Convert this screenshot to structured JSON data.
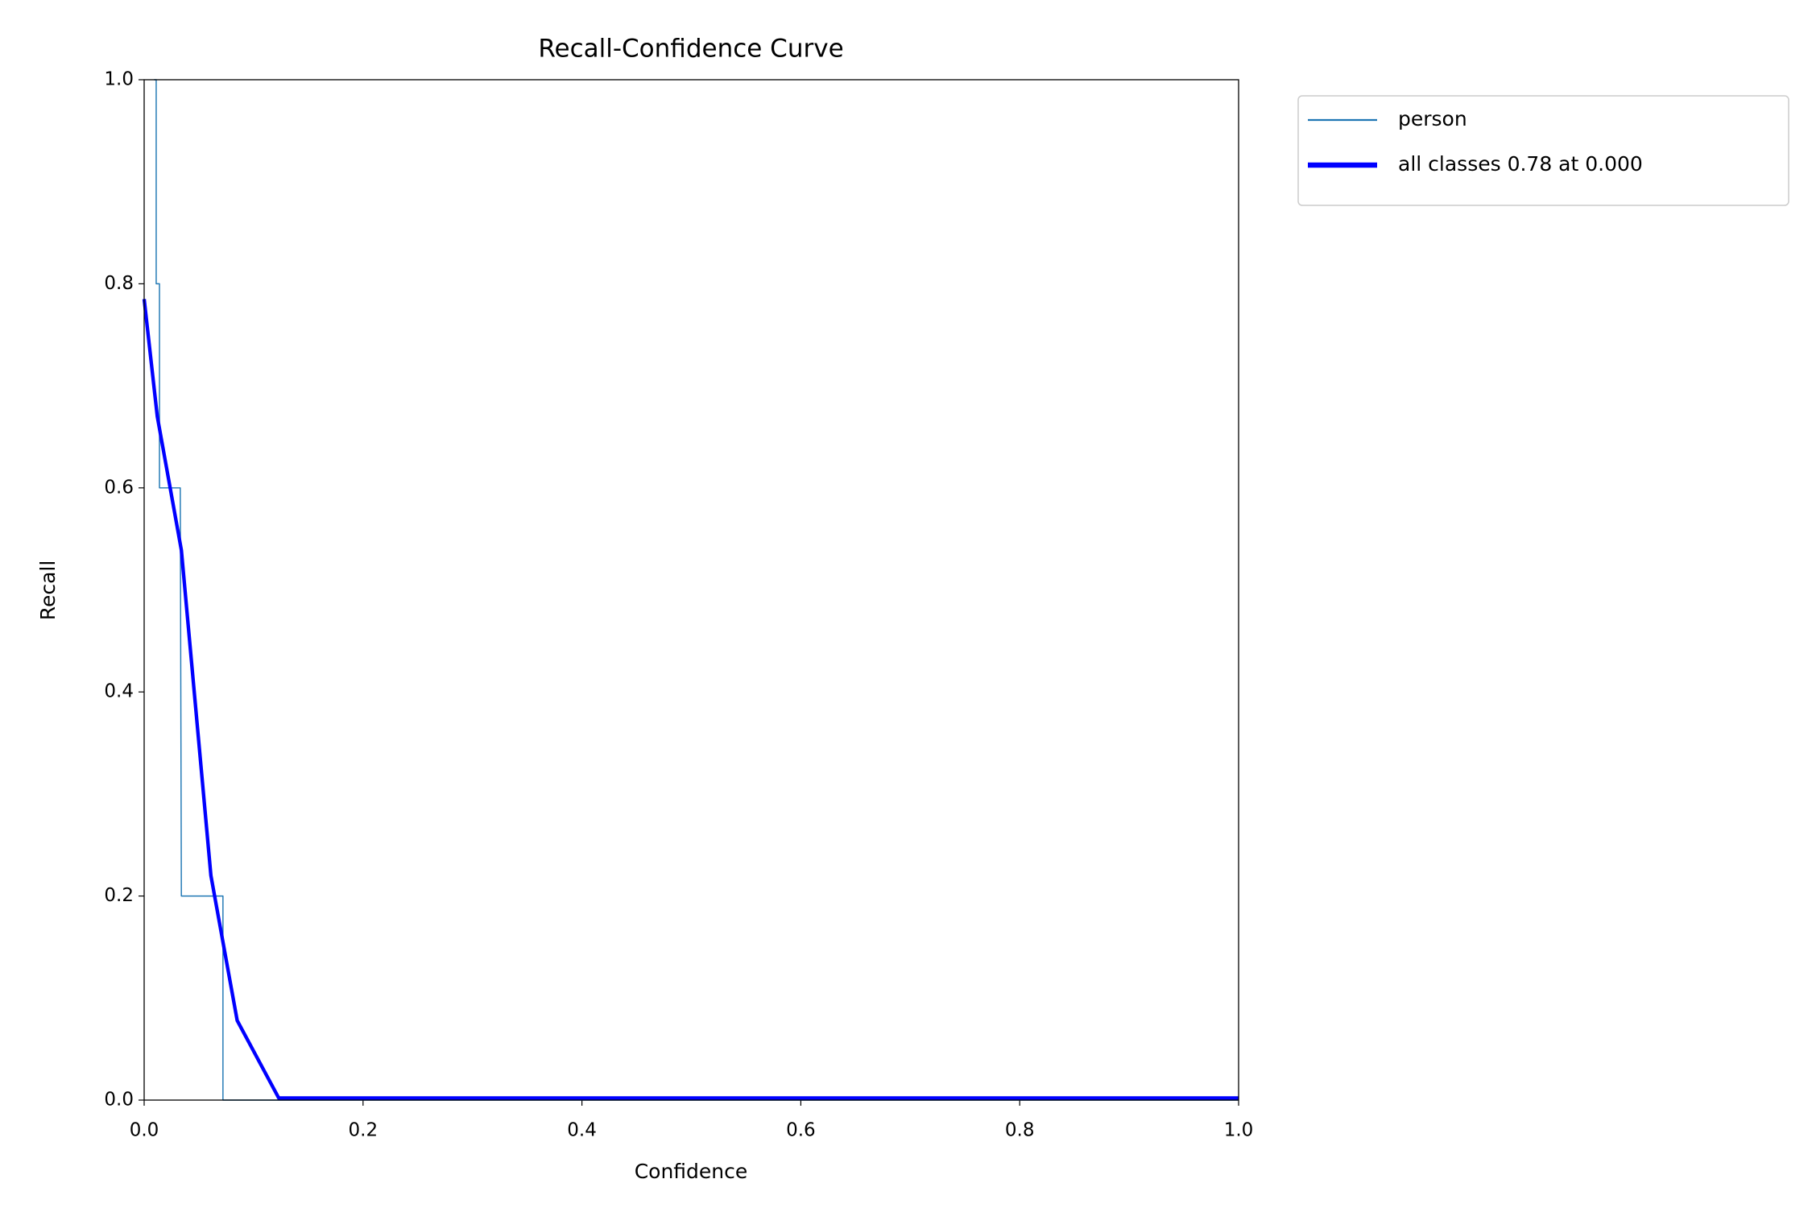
{
  "chart_data": {
    "type": "line",
    "title": "Recall-Confidence Curve",
    "xlabel": "Confidence",
    "ylabel": "Recall",
    "xlim": [
      0,
      1
    ],
    "ylim": [
      0,
      1
    ],
    "xticks": [
      {
        "value": 0,
        "label": "0.0"
      },
      {
        "value": 0.2,
        "label": "0.2"
      },
      {
        "value": 0.4,
        "label": "0.4"
      },
      {
        "value": 0.6,
        "label": "0.6"
      },
      {
        "value": 0.8,
        "label": "0.8"
      },
      {
        "value": 1,
        "label": "1.0"
      }
    ],
    "yticks": [
      {
        "value": 0,
        "label": "0.0"
      },
      {
        "value": 0.2,
        "label": "0.2"
      },
      {
        "value": 0.4,
        "label": "0.4"
      },
      {
        "value": 0.6,
        "label": "0.6"
      },
      {
        "value": 0.8,
        "label": "0.8"
      },
      {
        "value": 1,
        "label": "1.0"
      }
    ],
    "grid": false,
    "legend": "outside upper right",
    "series": [
      {
        "name": "person",
        "color": "#1f77b4",
        "width": 1,
        "x": [
          0.009,
          0.011,
          0.011,
          0.014,
          0.014,
          0.033,
          0.034,
          0.072,
          0.072,
          1.0
        ],
        "values": [
          1.0,
          1.0,
          0.8,
          0.8,
          0.6,
          0.6,
          0.2,
          0.2,
          0.0,
          0.0
        ]
      },
      {
        "name": "all classes 0.78 at 0.000",
        "color": "#0000ff",
        "width": 3,
        "x": [
          0,
          0.012,
          0.034,
          0.061,
          0.085,
          0.123,
          1.0
        ],
        "values": [
          0.785,
          0.67,
          0.539,
          0.22,
          0.078,
          0.002,
          0.002
        ]
      }
    ]
  }
}
